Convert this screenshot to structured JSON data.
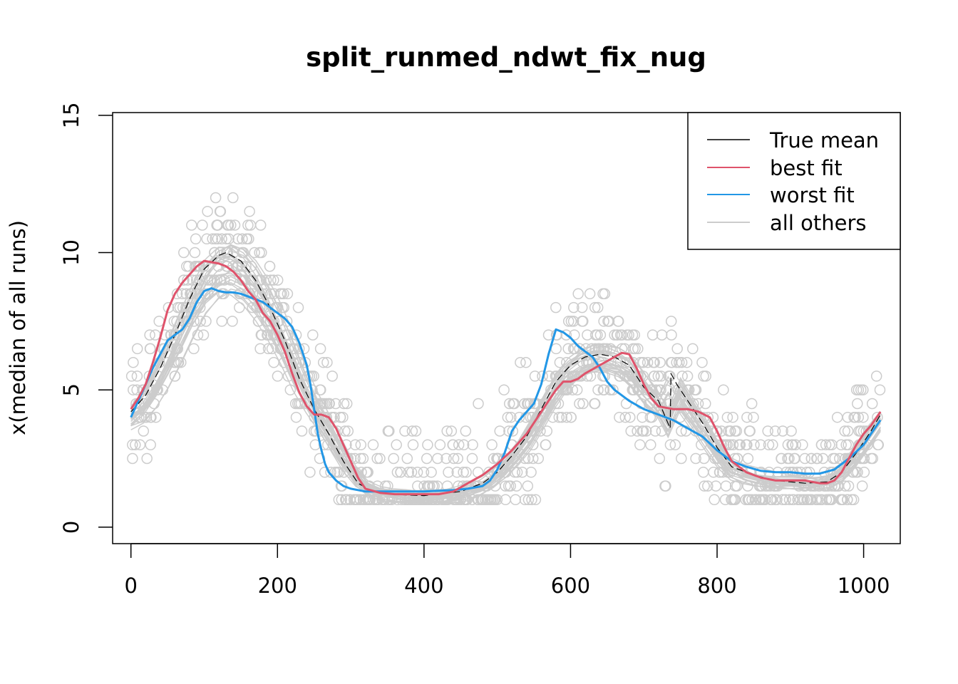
{
  "chart_data": {
    "type": "line",
    "title": "split_runmed_ndwt_fix_nug",
    "xlabel": "",
    "ylabel": "x(median of all runs)",
    "xlim": [
      -25,
      1050
    ],
    "ylim": [
      -0.6,
      15.1
    ],
    "xticks": [
      0,
      200,
      400,
      600,
      800,
      1000
    ],
    "yticks": [
      0,
      5,
      10,
      15
    ],
    "legend": {
      "position": "top-right",
      "entries": [
        "True mean",
        "best fit",
        "worst fit",
        "all others"
      ]
    },
    "colors": {
      "true_mean": "#000000",
      "best_fit": "#DF536B",
      "worst_fit": "#2297E6",
      "others": "#CCCCCC",
      "points": "#CCCCCC"
    },
    "series": [
      {
        "name": "True mean",
        "x": [
          0,
          20,
          40,
          60,
          80,
          100,
          120,
          130,
          150,
          170,
          190,
          210,
          230,
          250,
          270,
          290,
          310,
          330,
          350,
          400,
          450,
          480,
          500,
          520,
          540,
          560,
          580,
          600,
          620,
          640,
          660,
          680,
          700,
          720,
          736,
          737,
          745,
          760,
          780,
          800,
          820,
          850,
          880,
          920,
          950,
          970,
          990,
          1010,
          1023
        ],
        "values": [
          4.2,
          4.8,
          5.8,
          7.0,
          8.3,
          9.4,
          9.9,
          10.0,
          9.7,
          9.0,
          8.0,
          6.8,
          5.4,
          4.3,
          3.4,
          2.4,
          1.6,
          1.3,
          1.2,
          1.15,
          1.3,
          1.6,
          2.0,
          2.6,
          3.3,
          4.3,
          5.3,
          5.9,
          6.2,
          6.3,
          6.2,
          5.9,
          5.1,
          4.6,
          3.6,
          5.6,
          5.2,
          4.6,
          3.8,
          2.9,
          2.2,
          1.9,
          1.7,
          1.6,
          1.65,
          2.0,
          2.7,
          3.5,
          4.1
        ]
      },
      {
        "name": "best fit",
        "x": [
          0,
          10,
          20,
          30,
          40,
          50,
          60,
          70,
          80,
          90,
          100,
          110,
          120,
          130,
          140,
          150,
          160,
          170,
          180,
          190,
          200,
          210,
          220,
          230,
          240,
          250,
          260,
          270,
          280,
          290,
          300,
          310,
          320,
          340,
          360,
          380,
          400,
          420,
          440,
          460,
          480,
          500,
          520,
          540,
          560,
          570,
          580,
          590,
          600,
          610,
          620,
          640,
          660,
          670,
          680,
          690,
          700,
          710,
          720,
          740,
          760,
          775,
          790,
          800,
          810,
          820,
          840,
          860,
          880,
          900,
          920,
          940,
          950,
          960,
          970,
          980,
          990,
          1000,
          1010,
          1023
        ],
        "values": [
          4.3,
          4.7,
          5.2,
          6.0,
          6.9,
          7.9,
          8.5,
          8.9,
          9.2,
          9.5,
          9.7,
          9.65,
          9.6,
          9.5,
          9.3,
          9.0,
          8.6,
          8.3,
          7.8,
          7.5,
          7.0,
          6.4,
          5.6,
          4.9,
          4.4,
          4.1,
          4.1,
          4.0,
          3.6,
          3.0,
          2.4,
          1.8,
          1.4,
          1.25,
          1.2,
          1.2,
          1.2,
          1.2,
          1.3,
          1.6,
          1.9,
          2.3,
          2.8,
          3.4,
          4.2,
          4.6,
          5.0,
          5.3,
          5.3,
          5.4,
          5.6,
          5.9,
          6.2,
          6.35,
          6.3,
          5.8,
          5.2,
          4.7,
          4.4,
          4.3,
          4.3,
          4.2,
          4.0,
          3.5,
          2.9,
          2.4,
          2.0,
          1.8,
          1.7,
          1.7,
          1.7,
          1.6,
          1.6,
          1.7,
          2.0,
          2.5,
          3.0,
          3.4,
          3.7,
          4.2
        ]
      },
      {
        "name": "worst fit",
        "x": [
          0,
          10,
          20,
          30,
          40,
          50,
          60,
          70,
          80,
          90,
          100,
          110,
          120,
          130,
          140,
          150,
          160,
          170,
          180,
          190,
          200,
          210,
          220,
          230,
          240,
          245,
          250,
          255,
          260,
          265,
          270,
          280,
          290,
          300,
          320,
          340,
          360,
          400,
          440,
          460,
          480,
          490,
          500,
          510,
          520,
          530,
          540,
          550,
          560,
          570,
          580,
          590,
          600,
          610,
          620,
          630,
          640,
          650,
          660,
          680,
          700,
          720,
          740,
          760,
          780,
          800,
          820,
          840,
          860,
          880,
          900,
          920,
          940,
          960,
          980,
          1000,
          1010,
          1023
        ],
        "values": [
          4.0,
          4.6,
          5.2,
          5.8,
          6.3,
          6.8,
          7.0,
          7.2,
          7.6,
          8.2,
          8.6,
          8.7,
          8.6,
          8.55,
          8.55,
          8.5,
          8.4,
          8.3,
          8.2,
          8.0,
          7.8,
          7.6,
          7.3,
          6.7,
          5.9,
          5.2,
          4.3,
          3.4,
          2.8,
          2.3,
          2.0,
          1.7,
          1.5,
          1.4,
          1.3,
          1.3,
          1.3,
          1.3,
          1.35,
          1.4,
          1.5,
          1.7,
          2.1,
          2.7,
          3.5,
          3.9,
          4.2,
          4.5,
          5.2,
          6.3,
          7.2,
          7.1,
          6.9,
          6.6,
          6.4,
          6.2,
          5.8,
          5.3,
          5.0,
          4.6,
          4.3,
          4.1,
          3.9,
          3.6,
          3.3,
          2.8,
          2.4,
          2.2,
          2.05,
          2.0,
          2.0,
          1.95,
          1.95,
          2.1,
          2.5,
          3.0,
          3.4,
          3.9
        ]
      },
      {
        "name": "all others",
        "points_per_curve": 60,
        "count": 24
      }
    ]
  }
}
